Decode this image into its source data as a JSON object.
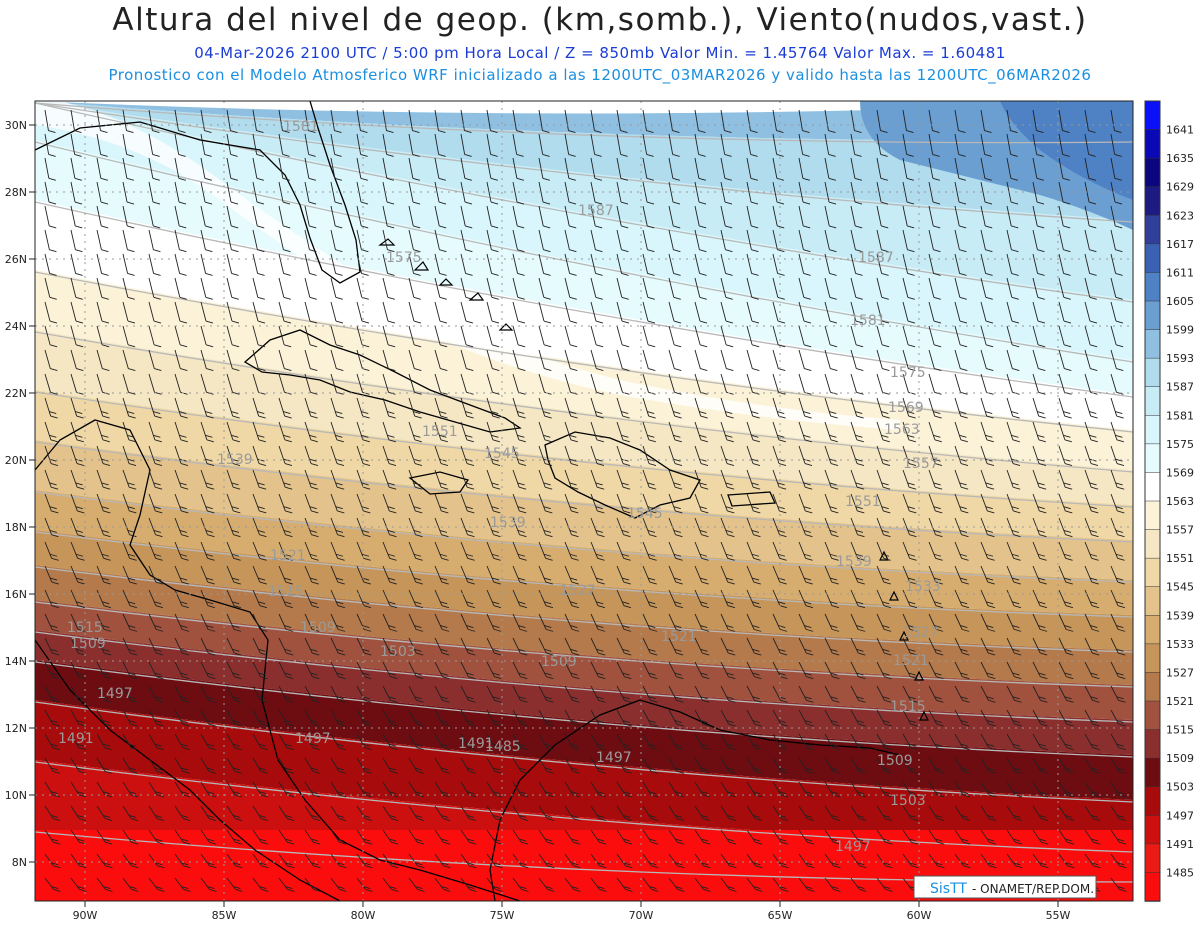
{
  "title": "Altura del nivel de geop. (km,somb.), Viento(nudos,vast.)",
  "subtitle_line1": "04-Mar-2026  2100 UTC / 5:00 pm Hora Local / Z = 850mb     Valor Min. = 1.45764  Valor Max. = 1.60481",
  "subtitle_line2": "Pronostico con el Modelo Atmosferico WRF inicializado a las 1200UTC_03MAR2026 y valido hasta las  1200UTC_06MAR2026",
  "lat_labels": [
    "30N",
    "28N",
    "26N",
    "24N",
    "22N",
    "20N",
    "18N",
    "16N",
    "14N",
    "12N",
    "10N",
    "8N"
  ],
  "lon_labels": [
    "90W",
    "85W",
    "80W",
    "75W",
    "70W",
    "65W",
    "60W",
    "55W"
  ],
  "colorbar": {
    "levels": [
      {
        "label": "1641",
        "color": "#0a10f7"
      },
      {
        "label": "1635",
        "color": "#0b08b5"
      },
      {
        "label": "1629",
        "color": "#0c067e"
      },
      {
        "label": "1623",
        "color": "#1d1a82"
      },
      {
        "label": "1617",
        "color": "#2f3f9a"
      },
      {
        "label": "1611",
        "color": "#3a61b4"
      },
      {
        "label": "1605",
        "color": "#4f82c4"
      },
      {
        "label": "1599",
        "color": "#6b9fd2"
      },
      {
        "label": "1593",
        "color": "#8fc0e2"
      },
      {
        "label": "1587",
        "color": "#b1dcee"
      },
      {
        "label": "1581",
        "color": "#c7ecf5"
      },
      {
        "label": "1575",
        "color": "#d8f6fb"
      },
      {
        "label": "1569",
        "color": "#e6fbfd"
      },
      {
        "label": "1563",
        "color": "#ffffff"
      },
      {
        "label": "1557",
        "color": "#fbf2d8"
      },
      {
        "label": "1551",
        "color": "#f5e7c4"
      },
      {
        "label": "1545",
        "color": "#efd8a6"
      },
      {
        "label": "1539",
        "color": "#e3c38b"
      },
      {
        "label": "1533",
        "color": "#d6ad6f"
      },
      {
        "label": "1527",
        "color": "#c5955a"
      },
      {
        "label": "1521",
        "color": "#b57a4c"
      },
      {
        "label": "1515",
        "color": "#a0523e"
      },
      {
        "label": "1509",
        "color": "#8b2f2e"
      },
      {
        "label": "1503",
        "color": "#6d0d12"
      },
      {
        "label": "1497",
        "color": "#a70b0b"
      },
      {
        "label": "1491",
        "color": "#cc1010"
      },
      {
        "label": "1485",
        "color": "#ea1a15"
      },
      {
        "label": "",
        "color": "#fb0d0d"
      }
    ]
  },
  "contour_labels": [
    {
      "text": "1587"
    },
    {
      "text": "1587"
    },
    {
      "text": "1581"
    },
    {
      "text": "1581"
    },
    {
      "text": "1575"
    },
    {
      "text": "1575"
    },
    {
      "text": "1569"
    },
    {
      "text": "1563"
    },
    {
      "text": "1557"
    },
    {
      "text": "1551"
    },
    {
      "text": "1551"
    },
    {
      "text": "1545"
    },
    {
      "text": "1545"
    },
    {
      "text": "1539"
    },
    {
      "text": "1539"
    },
    {
      "text": "1539"
    },
    {
      "text": "1533"
    },
    {
      "text": "1527"
    },
    {
      "text": "1527"
    },
    {
      "text": "1521"
    },
    {
      "text": "1521"
    },
    {
      "text": "1521"
    },
    {
      "text": "1515"
    },
    {
      "text": "1515"
    },
    {
      "text": "1515"
    },
    {
      "text": "1509"
    },
    {
      "text": "1509"
    },
    {
      "text": "1509"
    },
    {
      "text": "1509"
    },
    {
      "text": "1503"
    },
    {
      "text": "1503"
    },
    {
      "text": "1497"
    },
    {
      "text": "1497"
    },
    {
      "text": "1497"
    },
    {
      "text": "1497"
    },
    {
      "text": "1491"
    },
    {
      "text": "1491"
    },
    {
      "text": "1485"
    }
  ],
  "credit": {
    "brand": "SisTT",
    "text": " - ONAMET/REP.DOM."
  }
}
